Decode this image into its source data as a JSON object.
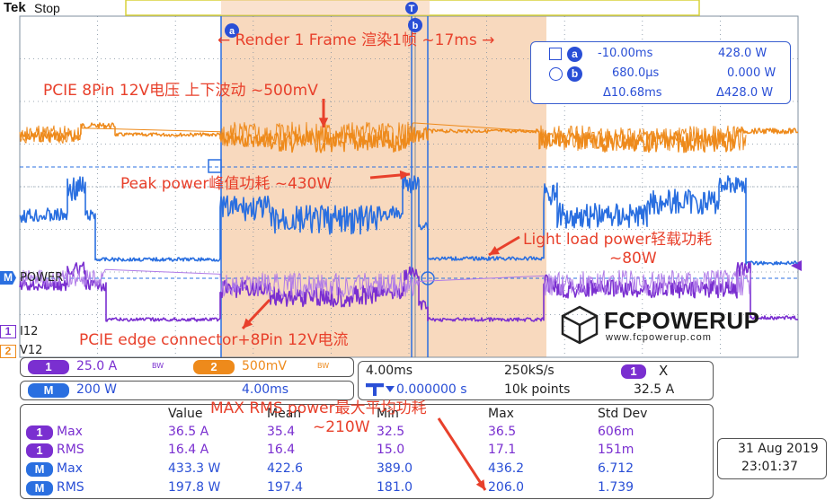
{
  "header": {
    "brand": "Tek",
    "state": "Stop"
  },
  "cursor_markers": {
    "a": "a",
    "b": "b",
    "trigger": "T"
  },
  "annotations": {
    "frame": "← Render 1 Frame 渲染1帧 ~17ms →",
    "voltage": "PCIE 8Pin 12V电压 上下波动 ~500mV",
    "peak": "Peak power峰值功耗 ~430W",
    "light1": "Light load power轻载功耗",
    "light2": "~80W",
    "current": "PCIE edge connector+8Pin 12V电流",
    "max_rms1": "MAX RMS power最大平均功耗",
    "max_rms2": "~210W"
  },
  "cursor_readout": {
    "a_time": "-10.00ms",
    "a_val": "428.0 W",
    "b_time": "680.0µs",
    "b_val": "0.000 W",
    "d_time": "Δ10.68ms",
    "d_val": "Δ428.0 W",
    "a_label": "a",
    "b_label": "b"
  },
  "channel_labels": {
    "power": "POWER",
    "i12": "I12",
    "v12": "V12",
    "m": "M",
    "c1": "1",
    "c2": "2"
  },
  "logo": {
    "name": "FCPOWERUP",
    "url": "www.fcpowerup.com"
  },
  "settings": {
    "ch1_num": "1",
    "ch1_scale": "25.0 A",
    "ch1_bw": "BW",
    "ch2_num": "2",
    "ch2_scale": "500mV",
    "ch2_bw": "BW",
    "m_label": "M",
    "m_scale": "200 W",
    "m_time": "4.00ms"
  },
  "timebase": {
    "hscale": "4.00ms",
    "rate": "250kS/s",
    "trig_ch": "1",
    "trig_type": "X",
    "pos": "0.000000 s",
    "points": "10k points",
    "trig_level": "32.5 A"
  },
  "measurements": {
    "headers": [
      "Value",
      "Mean",
      "Min",
      "Max",
      "Std Dev"
    ],
    "rows": [
      {
        "src": "1",
        "name": "Max",
        "cells": [
          "36.5 A",
          "35.4",
          "32.5",
          "36.5",
          "606m"
        ]
      },
      {
        "src": "1",
        "name": "RMS",
        "cells": [
          "16.4 A",
          "16.4",
          "15.0",
          "17.1",
          "151m"
        ]
      },
      {
        "src": "M",
        "name": "Max",
        "cells": [
          "433.3 W",
          "422.6",
          "389.0",
          "436.2",
          "6.712"
        ]
      },
      {
        "src": "M",
        "name": "RMS",
        "cells": [
          "197.8 W",
          "197.4",
          "181.0",
          "206.0",
          "1.739"
        ]
      }
    ]
  },
  "datetime": {
    "date": "31 Aug 2019",
    "time": "23:01:37"
  },
  "colors": {
    "ch1": "#7a2fd0",
    "ch2": "#ee8a1b",
    "math": "#2a6fe0",
    "highlight": "#f6cfae",
    "grid": "#7f8f9f",
    "annotation": "#e8402b"
  }
}
